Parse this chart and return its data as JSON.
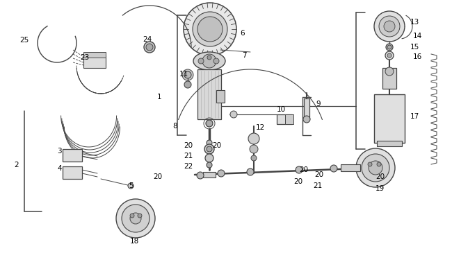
{
  "background_color": "#ffffff",
  "line_color": "#444444",
  "text_color": "#000000",
  "fig_width": 6.5,
  "fig_height": 3.75,
  "dpi": 100,
  "label_fs": 7.5,
  "lw_main": 1.0,
  "lw_thin": 0.7
}
